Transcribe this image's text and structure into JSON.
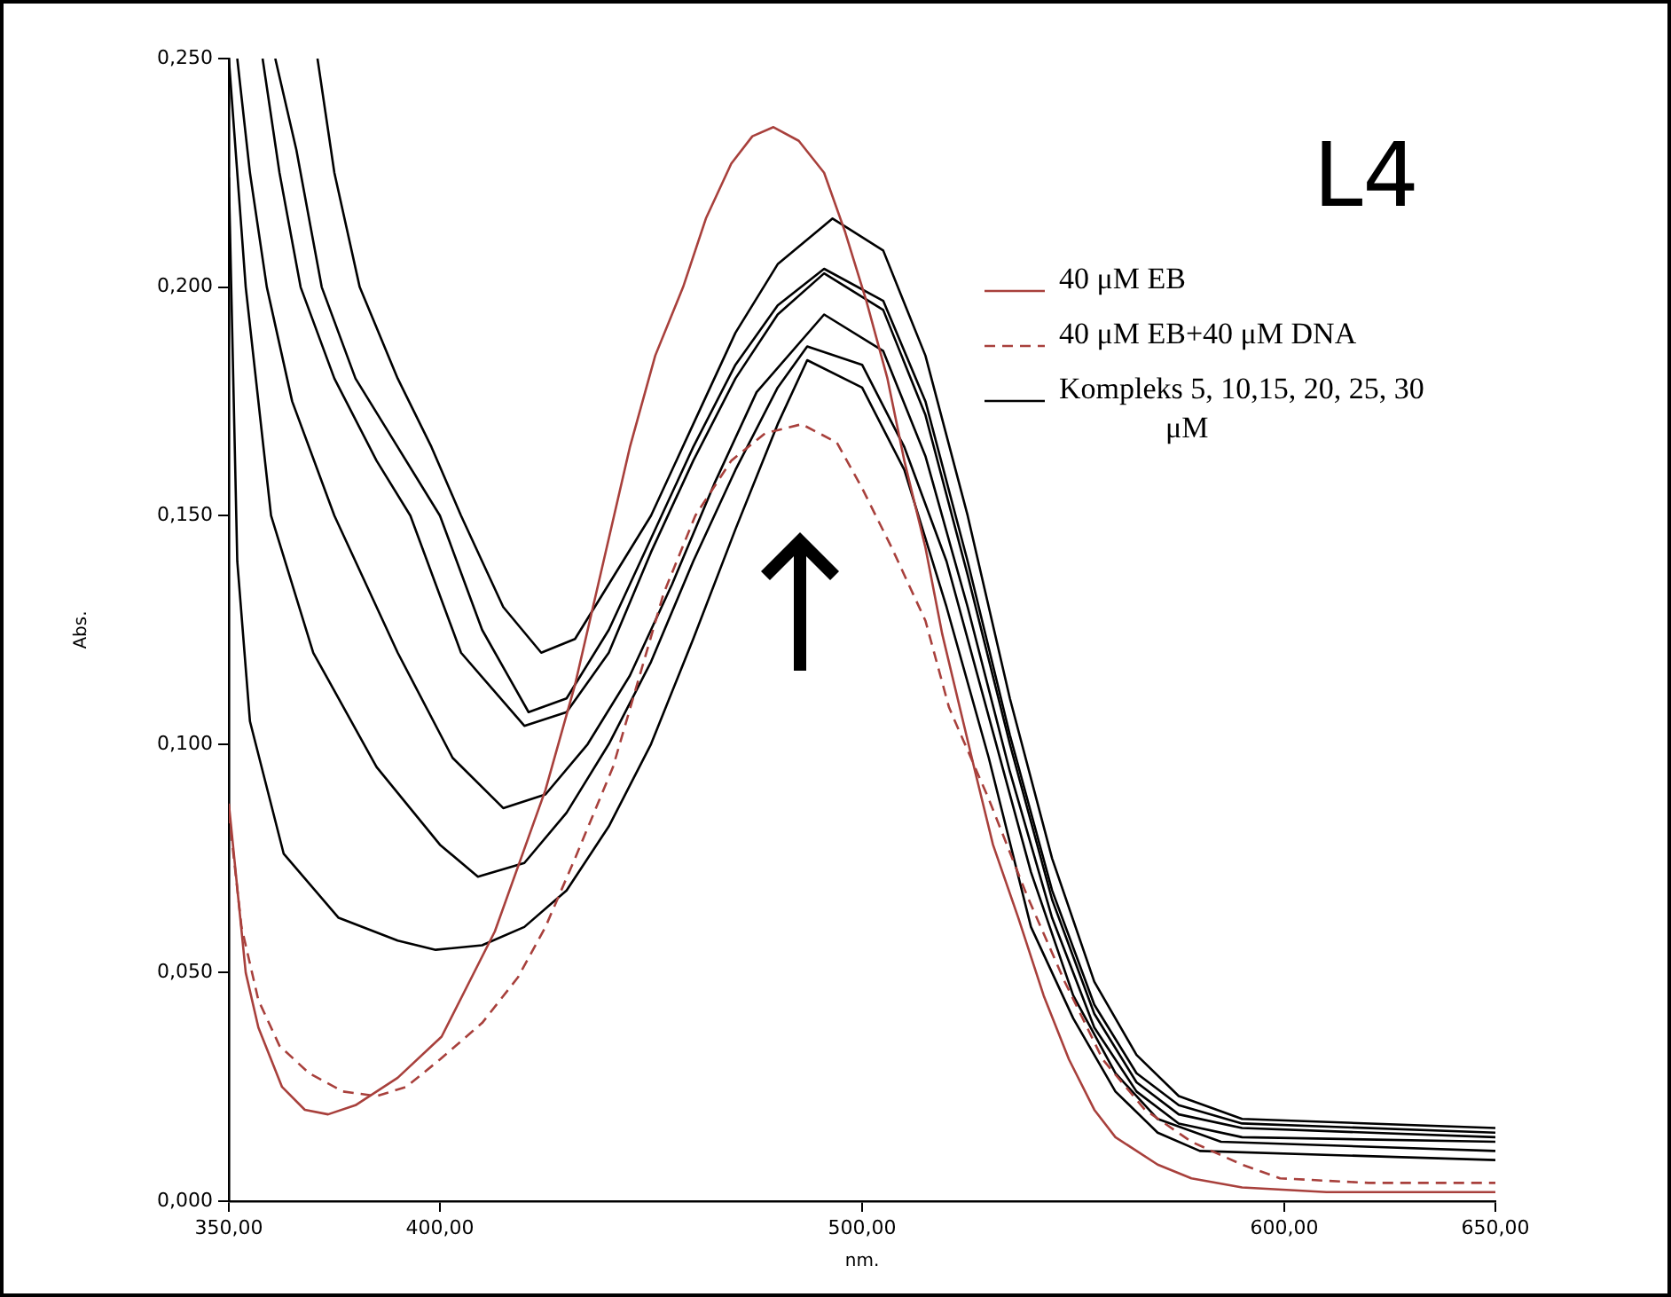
{
  "chart_data": {
    "type": "line",
    "xlabel": "nm.",
    "ylabel": "Abs.",
    "annotations": [
      "L4"
    ],
    "xlim": [
      350,
      650
    ],
    "xticks": [
      {
        "value": 350,
        "label": "350,00"
      },
      {
        "value": 400,
        "label": "400,00"
      },
      {
        "value": 500,
        "label": "500,00"
      },
      {
        "value": 600,
        "label": "600,00"
      },
      {
        "value": 650,
        "label": "650,00"
      }
    ],
    "ylim": [
      0,
      0.25
    ],
    "yticks": [
      {
        "value": 0,
        "label": "0,000"
      },
      {
        "value": 0.05,
        "label": "0,050"
      },
      {
        "value": 0.1,
        "label": "0,100"
      },
      {
        "value": 0.15,
        "label": "0,150"
      },
      {
        "value": 0.2,
        "label": "0,200"
      },
      {
        "value": 0.25,
        "label": "0,250"
      }
    ],
    "grid": false,
    "legend": "top right",
    "series": [
      {
        "name": "40 μM EB",
        "color": "#a8403c",
        "line_style": "solid",
        "x": [
          350,
          354,
          357,
          362.6,
          368,
          373.5,
          380,
          390,
          400.4,
          413,
          425,
          432,
          438,
          445,
          451,
          457.6,
          463,
          469,
          474,
          479,
          485,
          491,
          496,
          501,
          506,
          510,
          515,
          519,
          526.5,
          531,
          537,
          543,
          549,
          555,
          560,
          570,
          578,
          590,
          610,
          650
        ],
        "values": [
          0.087,
          0.05,
          0.038,
          0.025,
          0.02,
          0.019,
          0.021,
          0.027,
          0.036,
          0.059,
          0.09,
          0.113,
          0.137,
          0.165,
          0.185,
          0.2,
          0.215,
          0.227,
          0.233,
          0.235,
          0.232,
          0.225,
          0.212,
          0.197,
          0.18,
          0.162,
          0.143,
          0.124,
          0.095,
          0.078,
          0.062,
          0.045,
          0.031,
          0.02,
          0.014,
          0.008,
          0.005,
          0.003,
          0.002,
          0.002
        ]
      },
      {
        "name": "40 μM EB+40 μM DNA",
        "color": "#a8403c",
        "line_style": "dashed",
        "x": [
          350,
          353,
          357,
          362,
          369,
          377,
          385,
          392,
          400,
          410,
          418.5,
          425,
          432,
          441,
          447,
          453,
          460.5,
          469,
          477,
          485.7,
          494,
          500,
          507,
          515,
          520.6,
          530,
          539,
          548,
          557,
          567,
          578,
          590,
          599,
          620,
          650
        ],
        "values": [
          0.085,
          0.06,
          0.044,
          0.034,
          0.028,
          0.024,
          0.023,
          0.025,
          0.031,
          0.039,
          0.049,
          0.06,
          0.075,
          0.095,
          0.114,
          0.133,
          0.15,
          0.162,
          0.168,
          0.17,
          0.166,
          0.156,
          0.143,
          0.127,
          0.108,
          0.088,
          0.067,
          0.048,
          0.031,
          0.02,
          0.013,
          0.008,
          0.005,
          0.004,
          0.004
        ]
      },
      {
        "name": "Kompleks 5, 10,15, 20, 25, 30 μM",
        "color": "#000000",
        "line_style": "solid",
        "x": [
          371,
          375,
          381,
          390,
          398,
          405,
          415,
          424,
          432,
          440,
          450,
          460,
          470,
          480,
          493,
          505,
          515,
          525,
          535,
          545,
          555,
          565,
          575,
          590,
          650
        ],
        "values": [
          0.25,
          0.225,
          0.2,
          0.18,
          0.165,
          0.15,
          0.13,
          0.12,
          0.123,
          0.135,
          0.15,
          0.17,
          0.19,
          0.205,
          0.215,
          0.208,
          0.185,
          0.15,
          0.11,
          0.075,
          0.048,
          0.032,
          0.023,
          0.018,
          0.016
        ]
      },
      {
        "color": "#000000",
        "line_style": "solid",
        "x": [
          361,
          366,
          372,
          380,
          390,
          400,
          410,
          421,
          430,
          440,
          450,
          460,
          470,
          480,
          491,
          505,
          515,
          525,
          535,
          545,
          555,
          565,
          575,
          590,
          650
        ],
        "values": [
          0.25,
          0.23,
          0.2,
          0.18,
          0.165,
          0.15,
          0.125,
          0.107,
          0.11,
          0.125,
          0.145,
          0.165,
          0.183,
          0.196,
          0.204,
          0.197,
          0.175,
          0.14,
          0.102,
          0.068,
          0.043,
          0.028,
          0.021,
          0.017,
          0.015
        ]
      },
      {
        "color": "#000000",
        "line_style": "solid",
        "x": [
          358,
          362,
          367,
          375,
          385,
          393,
          405,
          420,
          430,
          440,
          450,
          460,
          470,
          480,
          491,
          505,
          515,
          525,
          535,
          545,
          555,
          565,
          575,
          590,
          650
        ],
        "values": [
          0.25,
          0.225,
          0.2,
          0.18,
          0.162,
          0.15,
          0.12,
          0.104,
          0.107,
          0.12,
          0.142,
          0.162,
          0.18,
          0.194,
          0.203,
          0.195,
          0.172,
          0.137,
          0.1,
          0.066,
          0.041,
          0.026,
          0.019,
          0.016,
          0.014
        ]
      },
      {
        "color": "#000000",
        "line_style": "solid",
        "x": [
          352,
          355,
          359,
          365,
          375,
          390,
          403,
          415,
          425,
          435,
          445,
          455,
          465,
          475,
          491,
          505,
          515,
          525,
          535,
          545,
          555,
          565,
          575,
          590,
          650
        ],
        "values": [
          0.25,
          0.225,
          0.2,
          0.175,
          0.15,
          0.12,
          0.097,
          0.086,
          0.089,
          0.1,
          0.115,
          0.135,
          0.157,
          0.177,
          0.194,
          0.186,
          0.163,
          0.13,
          0.094,
          0.062,
          0.038,
          0.024,
          0.017,
          0.014,
          0.013
        ]
      },
      {
        "color": "#000000",
        "line_style": "solid",
        "x": [
          350,
          354,
          360,
          370,
          385,
          400,
          409,
          420,
          430,
          440,
          450,
          460,
          470,
          480,
          487,
          500,
          510,
          520,
          530,
          540,
          550,
          560,
          570,
          585,
          650
        ],
        "values": [
          0.25,
          0.2,
          0.15,
          0.12,
          0.095,
          0.078,
          0.071,
          0.074,
          0.085,
          0.1,
          0.118,
          0.14,
          0.16,
          0.178,
          0.187,
          0.183,
          0.165,
          0.14,
          0.106,
          0.072,
          0.045,
          0.028,
          0.018,
          0.013,
          0.011
        ]
      },
      {
        "color": "#000000",
        "line_style": "solid",
        "x": [
          350,
          352,
          355,
          363,
          376,
          390,
          399,
          410,
          420,
          430,
          440,
          450,
          460,
          470,
          480,
          487,
          500,
          510,
          520,
          530,
          540,
          550,
          560,
          570,
          580,
          650
        ],
        "values": [
          0.224,
          0.14,
          0.105,
          0.076,
          0.062,
          0.057,
          0.055,
          0.056,
          0.06,
          0.068,
          0.082,
          0.1,
          0.123,
          0.147,
          0.17,
          0.184,
          0.178,
          0.16,
          0.13,
          0.097,
          0.06,
          0.04,
          0.024,
          0.015,
          0.011,
          0.009
        ]
      }
    ]
  }
}
